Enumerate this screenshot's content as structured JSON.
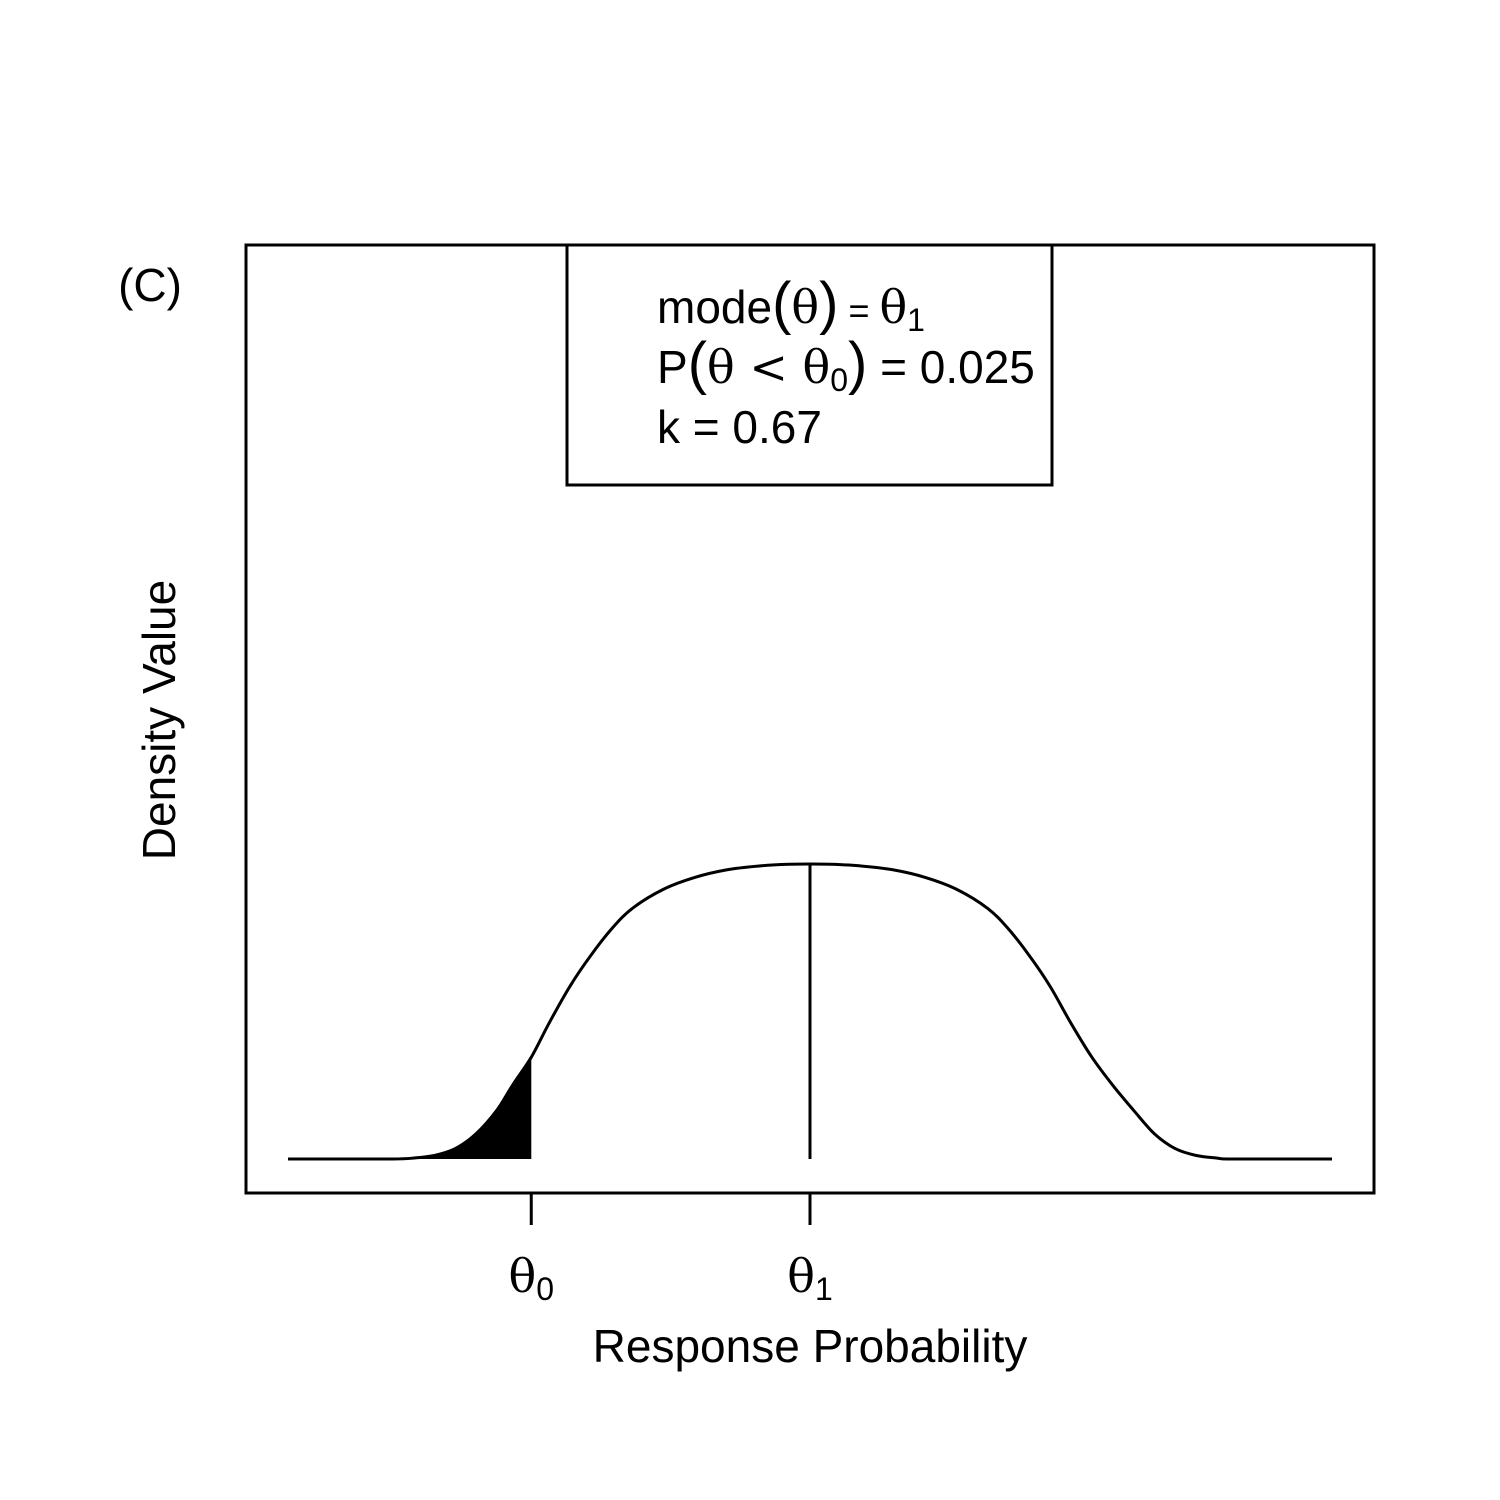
{
  "panel_label": "(C)",
  "chart_data": {
    "type": "line",
    "xlabel": "Response Probability",
    "ylabel": "Density Value",
    "x_ticks": [
      {
        "value": 0.233,
        "symbol": "θ",
        "sub": "0"
      },
      {
        "value": 0.5,
        "symbol": "θ",
        "sub": "1"
      }
    ],
    "xlim": [
      0,
      1
    ],
    "ylim": [
      0,
      1
    ],
    "mode_x": 0.5,
    "shade_below_x": 0.233,
    "shaded_area": 0.025,
    "legend": {
      "line1": {
        "a": "mode",
        "b": "θ",
        "c": " = ",
        "d": "θ",
        "e": "1"
      },
      "line2": {
        "a": "P",
        "b": "θ < θ",
        "c": "0",
        "d": " = 0.025"
      },
      "line3": "k = 0.67"
    },
    "series": [
      {
        "x": [
          0,
          0.05,
          0.1,
          0.12,
          0.14,
          0.16,
          0.18,
          0.2,
          0.215,
          0.233,
          0.25,
          0.27,
          0.29,
          0.31,
          0.33,
          0.36,
          0.39,
          0.42,
          0.45,
          0.48,
          0.5,
          0.52,
          0.55,
          0.58,
          0.61,
          0.64,
          0.67,
          0.69,
          0.71,
          0.73,
          0.75,
          0.77,
          0.79,
          0.81,
          0.83,
          0.85,
          0.87,
          0.89,
          0.9,
          0.95,
          1
        ],
        "y": [
          0,
          0,
          0,
          0.003,
          0.012,
          0.035,
          0.085,
          0.165,
          0.25,
          0.345,
          0.46,
          0.585,
          0.69,
          0.78,
          0.85,
          0.915,
          0.955,
          0.98,
          0.993,
          0.999,
          1,
          0.999,
          0.993,
          0.98,
          0.955,
          0.915,
          0.85,
          0.78,
          0.69,
          0.585,
          0.46,
          0.345,
          0.25,
          0.165,
          0.085,
          0.035,
          0.012,
          0.003,
          0,
          0,
          0
        ]
      }
    ]
  }
}
